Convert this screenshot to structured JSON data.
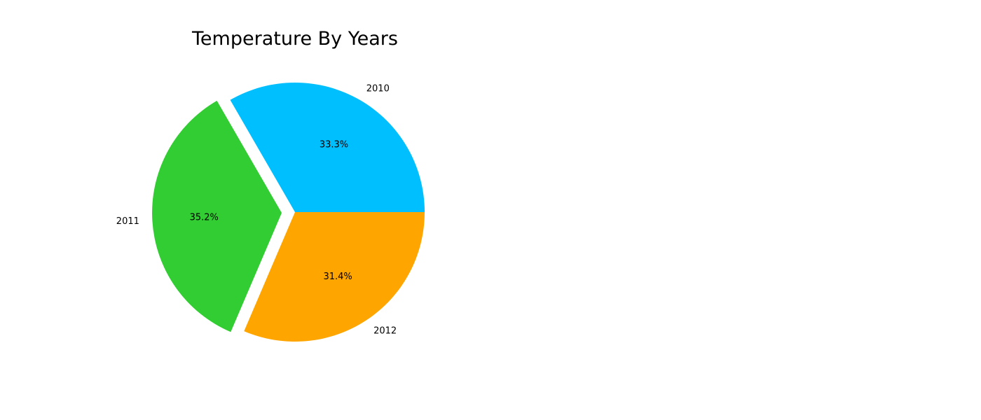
{
  "chart_data": {
    "type": "pie",
    "title": "Temperature By Years",
    "categories": [
      "2010",
      "2011",
      "2012"
    ],
    "values": [
      33.3,
      35.2,
      31.4
    ],
    "percent_labels": [
      "33.3%",
      "35.2%",
      "31.4%"
    ],
    "colors": [
      "#00bfff",
      "#32cd32",
      "#ffa500"
    ],
    "exploded": [
      false,
      true,
      false
    ],
    "start_angle_deg": 0,
    "direction": "counterclockwise",
    "legend": "none"
  }
}
